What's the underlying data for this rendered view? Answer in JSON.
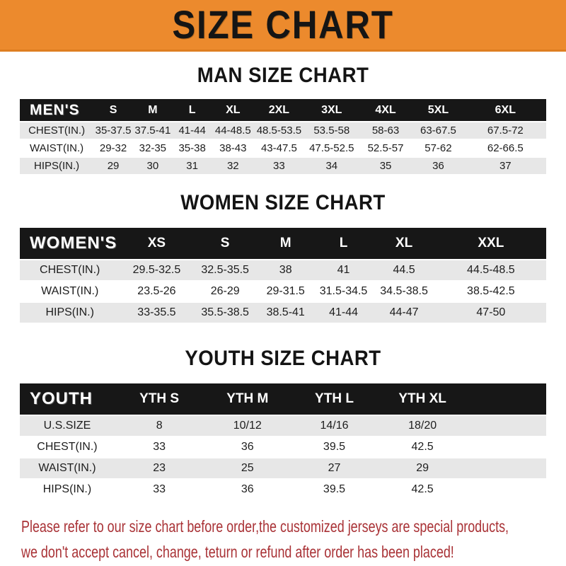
{
  "banner": {
    "title": "SIZE CHART",
    "bg_color": "#EC8A2D",
    "text_color": "#151515"
  },
  "sections": [
    {
      "heading": "MAN SIZE CHART",
      "label": "MEN'S",
      "columns": [
        "S",
        "M",
        "L",
        "XL",
        "2XL",
        "3XL",
        "4XL",
        "5XL",
        "6XL"
      ],
      "rows": [
        {
          "label": "CHEST(IN.)",
          "values": [
            "35-37.5",
            "37.5-41",
            "41-44",
            "44-48.5",
            "48.5-53.5",
            "53.5-58",
            "58-63",
            "63-67.5",
            "67.5-72"
          ]
        },
        {
          "label": "WAIST(IN.)",
          "values": [
            "29-32",
            "32-35",
            "35-38",
            "38-43",
            "43-47.5",
            "47.5-52.5",
            "52.5-57",
            "57-62",
            "62-66.5"
          ]
        },
        {
          "label": "HIPS(IN.)",
          "values": [
            "29",
            "30",
            "31",
            "32",
            "33",
            "34",
            "35",
            "36",
            "37"
          ]
        }
      ]
    },
    {
      "heading": "WOMEN SIZE CHART",
      "label": "WOMEN'S",
      "columns": [
        "XS",
        "S",
        "M",
        "L",
        "XL",
        "XXL"
      ],
      "rows": [
        {
          "label": "CHEST(IN.)",
          "values": [
            "29.5-32.5",
            "32.5-35.5",
            "38",
            "41",
            "44.5",
            "44.5-48.5"
          ]
        },
        {
          "label": "WAIST(IN.)",
          "values": [
            "23.5-26",
            "26-29",
            "29-31.5",
            "31.5-34.5",
            "34.5-38.5",
            "38.5-42.5"
          ]
        },
        {
          "label": "HIPS(IN.)",
          "values": [
            "33-35.5",
            "35.5-38.5",
            "38.5-41",
            "41-44",
            "44-47",
            "47-50"
          ]
        }
      ]
    },
    {
      "heading": "YOUTH SIZE CHART",
      "label": "YOUTH",
      "columns": [
        "YTH S",
        "YTH M",
        "YTH L",
        "YTH XL"
      ],
      "rows": [
        {
          "label": "U.S.SIZE",
          "values": [
            "8",
            "10/12",
            "14/16",
            "18/20"
          ]
        },
        {
          "label": "CHEST(IN.)",
          "values": [
            "33",
            "36",
            "39.5",
            "42.5"
          ]
        },
        {
          "label": "WAIST(IN.)",
          "values": [
            "23",
            "25",
            "27",
            "29"
          ]
        },
        {
          "label": "HIPS(IN.)",
          "values": [
            "33",
            "36",
            "39.5",
            "42.5"
          ]
        }
      ]
    }
  ],
  "footer": {
    "line1": "Please refer to our size chart before order,the customized jerseys are special products,",
    "line2": "we don't accept cancel, change, teturn or refund after order has been placed!",
    "text_color": "#A93236",
    "row_stripe_color": "#E7E7E7",
    "header_bar_color": "#171717"
  }
}
